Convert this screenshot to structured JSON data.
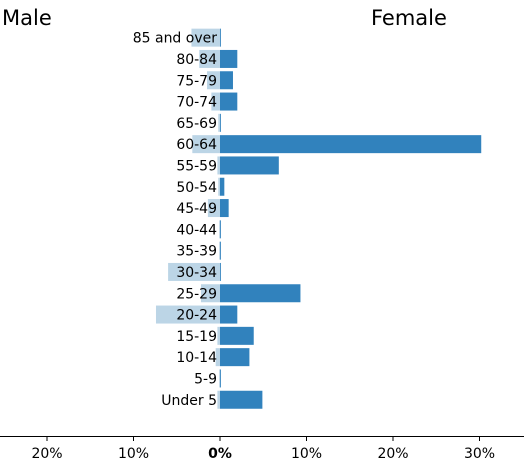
{
  "chart_data": {
    "type": "bar",
    "orientation": "horizontal",
    "left_label": "Male",
    "right_label": "Female",
    "categories": [
      "85 and over",
      "80-84",
      "75-79",
      "70-74",
      "65-69",
      "60-64",
      "55-59",
      "50-54",
      "45-49",
      "40-44",
      "35-39",
      "30-34",
      "25-29",
      "20-24",
      "15-19",
      "10-14",
      "5-9",
      "Under 5"
    ],
    "series": [
      {
        "name": "Male",
        "values": [
          3.3,
          2.4,
          1.5,
          1.0,
          0.2,
          3.2,
          0.3,
          0.2,
          1.4,
          0.1,
          0.1,
          6.0,
          2.2,
          7.4,
          0.3,
          0.5,
          0.1,
          0.3
        ],
        "color": "#bcd5e6"
      },
      {
        "name": "Female",
        "values": [
          0.1,
          2.0,
          1.5,
          2.0,
          0.1,
          30.2,
          6.8,
          0.5,
          1.0,
          0.1,
          0.1,
          0.1,
          9.3,
          2.0,
          3.9,
          3.4,
          0.1,
          4.9
        ],
        "color": "#3182bd"
      }
    ],
    "xlim": [
      -25,
      35
    ],
    "xticks": [
      -20,
      -10,
      0,
      10,
      20,
      30
    ],
    "xtick_labels": [
      "20%",
      "10%",
      "0%",
      "10%",
      "20%",
      "30%"
    ],
    "grid": false
  }
}
